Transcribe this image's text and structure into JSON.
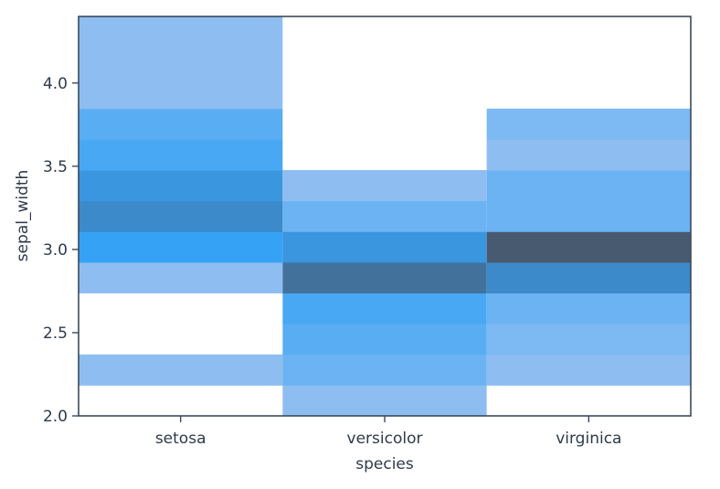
{
  "chart_data": {
    "type": "heatmap",
    "title": "",
    "xlabel": "species",
    "ylabel": "sepal_width",
    "categories": [
      "setosa",
      "versicolor",
      "virginica"
    ],
    "ylim": [
      2.0,
      4.4
    ],
    "yticks": [
      2.0,
      2.5,
      3.0,
      3.5,
      4.0
    ],
    "ytick_labels": [
      "2.0",
      "2.5",
      "3.0",
      "3.5",
      "4.0"
    ],
    "bin_edges": [
      2.0,
      2.1846,
      2.3692,
      2.5538,
      2.7385,
      2.9231,
      3.1077,
      3.2923,
      3.4769,
      3.6615,
      3.8462,
      4.0308,
      4.2154,
      4.4
    ],
    "counts": {
      "setosa": [
        0,
        1,
        0,
        0,
        1,
        6,
        8,
        7,
        5,
        4,
        1,
        1,
        1
      ],
      "versicolor": [
        1,
        3,
        4,
        5,
        10,
        7,
        3,
        1,
        0,
        0,
        0,
        0,
        0
      ],
      "virginica": [
        0,
        1,
        2,
        3,
        8,
        12,
        3,
        3,
        1,
        2,
        0,
        0,
        0
      ]
    },
    "color_scale": {
      "low": "#a0c4f0",
      "mid": "#36a2f5",
      "high": "#485a70",
      "max_count": 12
    }
  }
}
